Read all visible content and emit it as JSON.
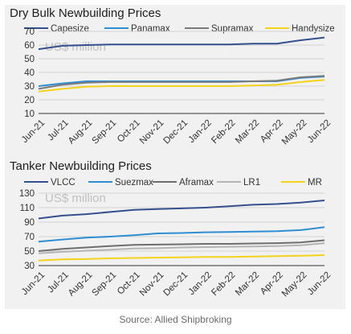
{
  "source": "Source: Allied Shipbroking",
  "colors": {
    "panel": "#f1f1f1",
    "grid": "#d2d2d2",
    "axis": "#333333",
    "watermark": "#c0c0c0"
  },
  "chart_data": [
    {
      "type": "line",
      "title": "Dry Bulk Newbuilding Prices",
      "watermark": "US$ million",
      "ylim": [
        10,
        70
      ],
      "yticks": [
        10,
        20,
        30,
        40,
        50,
        60,
        70
      ],
      "x": [
        "Jun-21",
        "Jul-21",
        "Aug-21",
        "Sep-21",
        "Oct-21",
        "Nov-21",
        "Dec-21",
        "Jan-22",
        "Feb-22",
        "Mar-22",
        "Apr-22",
        "May-22",
        "Jun-22"
      ],
      "grid": true,
      "legend": "top",
      "series": [
        {
          "name": "Capesize",
          "color": "#35508f",
          "values": [
            57,
            59.5,
            60,
            60.5,
            60.5,
            60.5,
            60.5,
            60.5,
            60.5,
            61,
            61,
            63.5,
            65.5
          ]
        },
        {
          "name": "Panamax",
          "color": "#2f8ed2",
          "values": [
            30,
            32,
            33.5,
            33.5,
            33.5,
            33.5,
            33.5,
            33.5,
            33.5,
            33.5,
            33.5,
            36,
            37
          ]
        },
        {
          "name": "Supramax",
          "color": "#7a7a7a",
          "values": [
            28,
            31,
            32.5,
            33,
            33,
            33,
            33,
            33,
            33,
            33.5,
            34,
            36.5,
            37.5
          ]
        },
        {
          "name": "Handysize",
          "color": "#f5d21c",
          "values": [
            26,
            28,
            29.5,
            30,
            30,
            30,
            30,
            30,
            30,
            30.5,
            31,
            33,
            34.5
          ]
        }
      ]
    },
    {
      "type": "line",
      "title": "Tanker Newbuilding Prices",
      "watermark": "US$ million",
      "ylim": [
        30,
        130
      ],
      "yticks": [
        30,
        50,
        70,
        90,
        110,
        130
      ],
      "x": [
        "Jun-21",
        "Jul-21",
        "Aug-21",
        "Sep-21",
        "Oct-21",
        "Nov-21",
        "Dec-21",
        "Jan-22",
        "Feb-22",
        "Mar-22",
        "Apr-22",
        "May-22",
        "Jun-22"
      ],
      "grid": true,
      "legend": "top",
      "series": [
        {
          "name": "VLCC",
          "color": "#35508f",
          "values": [
            95,
            99,
            101,
            104,
            107,
            108,
            109,
            110,
            112,
            114,
            115,
            117,
            120
          ]
        },
        {
          "name": "Suezmax",
          "color": "#2f8ed2",
          "values": [
            63,
            66,
            68.5,
            70,
            72,
            74.5,
            75,
            76,
            76.5,
            77,
            77.5,
            79,
            83
          ]
        },
        {
          "name": "Aframax",
          "color": "#6e6e6e",
          "values": [
            50,
            53,
            55,
            57,
            58.5,
            59,
            59.5,
            60,
            60,
            60.5,
            61,
            62,
            65
          ]
        },
        {
          "name": "LR1",
          "color": "#b4b4b4",
          "values": [
            47,
            49,
            50.5,
            52,
            53.5,
            54,
            55,
            55.5,
            56,
            56.5,
            57,
            58,
            61
          ]
        },
        {
          "name": "MR",
          "color": "#f5d21c",
          "values": [
            37,
            38.5,
            39,
            40,
            40.5,
            41,
            41.5,
            42,
            42,
            42.5,
            43,
            43.5,
            44.5
          ]
        }
      ]
    }
  ]
}
